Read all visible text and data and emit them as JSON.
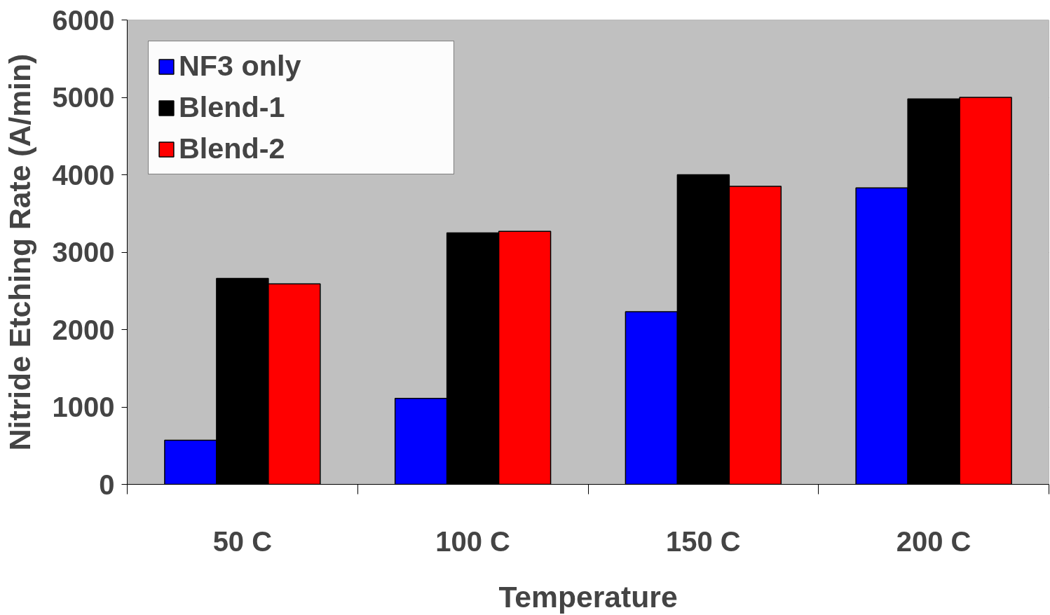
{
  "chart_data": {
    "type": "bar",
    "xlabel": "Temperature",
    "ylabel": "Nitride Etching Rate (A/min)",
    "categories": [
      "50 C",
      "100 C",
      "150 C",
      "200 C"
    ],
    "series": [
      {
        "name": "NF3 only",
        "color": "#0000ff",
        "values": [
          570,
          1110,
          2230,
          3830
        ]
      },
      {
        "name": "Blend-1",
        "color": "#000000",
        "values": [
          2660,
          3250,
          4000,
          4980
        ]
      },
      {
        "name": "Blend-2",
        "color": "#ff0000",
        "values": [
          2590,
          3270,
          3850,
          5000
        ]
      }
    ],
    "ylim": [
      0,
      6000
    ],
    "yticks": [
      0,
      1000,
      2000,
      3000,
      4000,
      5000,
      6000
    ],
    "grid": "y",
    "legend": "top left"
  }
}
